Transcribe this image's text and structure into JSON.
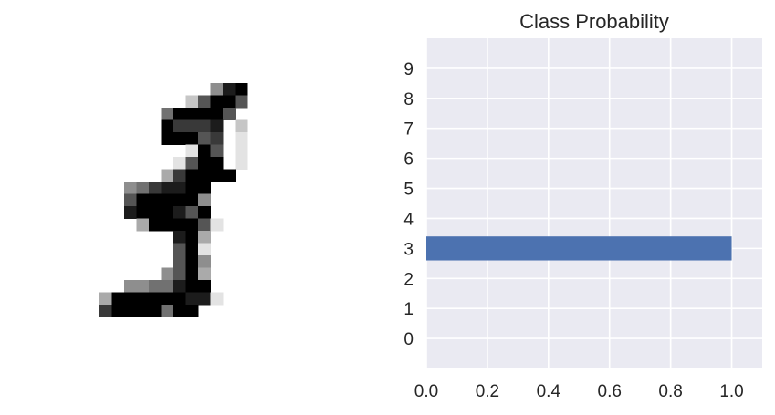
{
  "digit_image": {
    "grid_size": 28,
    "cmap": "gray_r",
    "rows": [
      "............................",
      "............................",
      "............................",
      "............................",
      "............................",
      "............................",
      "...............489..........",
      ".............26996..........",
      "...........599996...........",
      "...........97778.2..........",
      "...........99967.1..........",
      ".............196.1..........",
      "............1699.1..........",
      "...........379999...........",
      "........4578899.............",
      "........6999994.............",
      "........8999869.............",
      ".........3999961............",
      "............893.............",
      "............691.............",
      "............694.............",
      "...........4693.............",
      "........4455899.............",
      "......3999999881............",
      "......79999599..............",
      "............................",
      "............................",
      "............................"
    ]
  },
  "chart_data": {
    "type": "bar",
    "orientation": "horizontal",
    "title": "Class Probability",
    "categories": [
      "0",
      "1",
      "2",
      "3",
      "4",
      "5",
      "6",
      "7",
      "8",
      "9"
    ],
    "values": [
      0.0,
      0.0,
      0.0,
      1.0,
      0.0,
      0.0,
      0.0,
      0.0,
      0.0,
      0.0
    ],
    "xlim": [
      0,
      1.1
    ],
    "ylim": [
      -1,
      10
    ],
    "xticks": [
      "0.0",
      "0.2",
      "0.4",
      "0.6",
      "0.8",
      "1.0"
    ],
    "xlabel": "",
    "ylabel": "",
    "grid": true,
    "colors": {
      "bar": "#4c72b0",
      "background": "#eaeaf2",
      "grid": "#ffffff",
      "text": "#262626"
    }
  }
}
